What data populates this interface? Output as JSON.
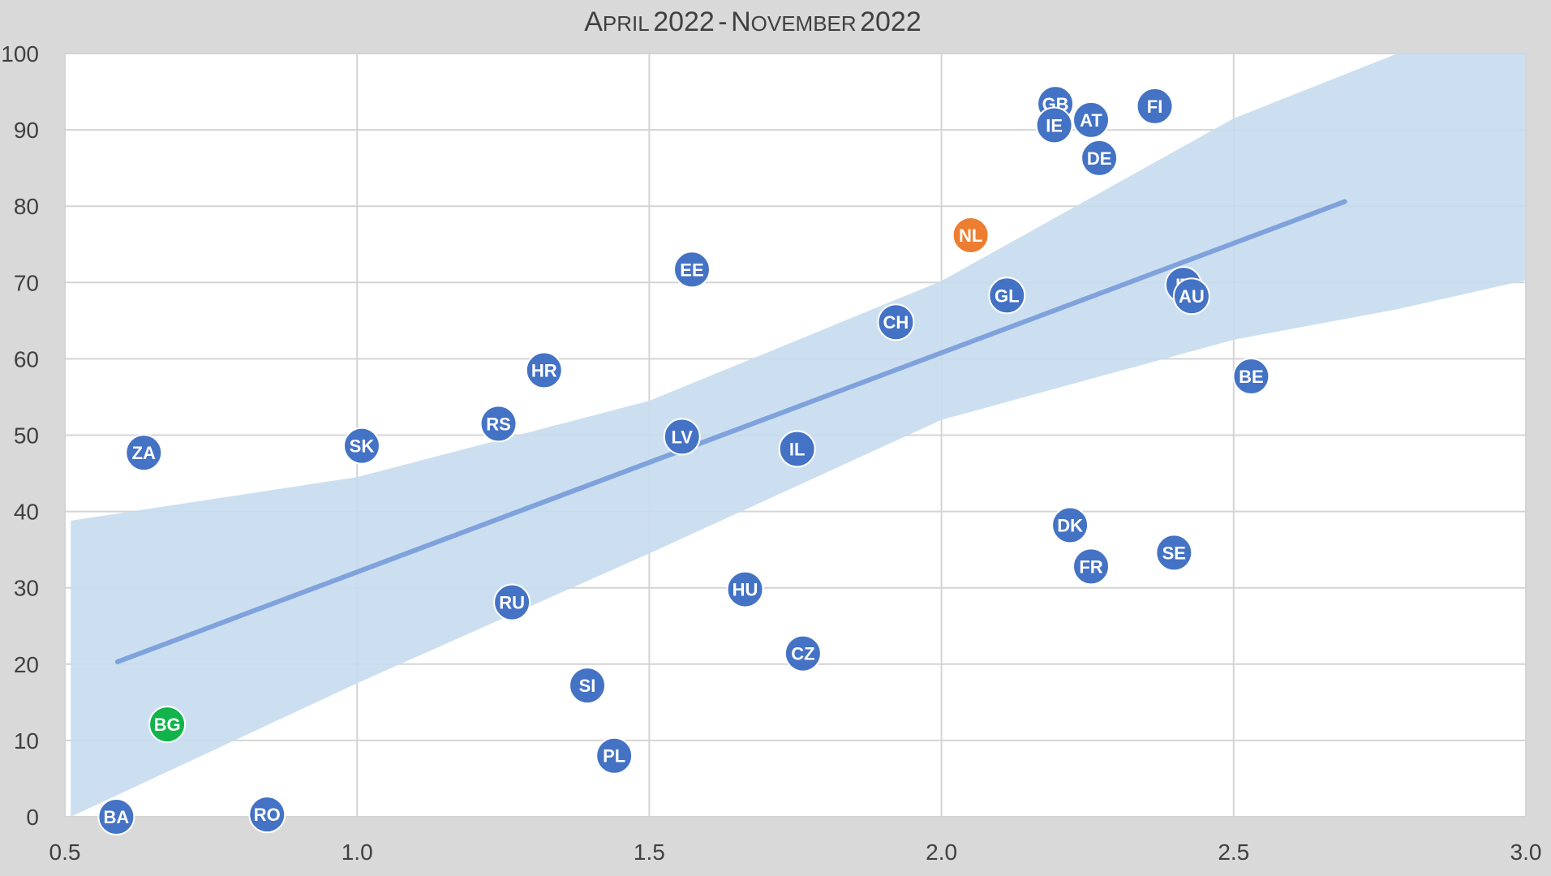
{
  "chart_data": {
    "type": "scatter",
    "title": "April 2022 - November 2022",
    "xlabel": "",
    "ylabel": "",
    "xlim": [
      0.5,
      3.0
    ],
    "ylim": [
      0,
      100
    ],
    "x_ticks": [
      "0.5",
      "1.0",
      "1.5",
      "2.0",
      "2.5",
      "3.0"
    ],
    "y_ticks": [
      "0",
      "10",
      "20",
      "30",
      "40",
      "50",
      "60",
      "70",
      "80",
      "90",
      "100"
    ],
    "grid": true,
    "legend": "none",
    "trendline": {
      "x": [
        0.59,
        2.69
      ],
      "y": [
        20.3,
        80.6
      ],
      "color": "#7fa2dc"
    },
    "confidence_band": {
      "color": "#c6dbf0",
      "x": [
        0.51,
        1.0,
        1.5,
        2.0,
        2.5,
        2.78,
        3.0
      ],
      "upper": [
        38.8,
        44.5,
        54.5,
        70.2,
        91.5,
        100,
        100
      ],
      "lower": [
        0,
        17.5,
        34.5,
        52.0,
        62.5,
        66.5,
        70.3
      ]
    },
    "colors": {
      "default": "#4472c4",
      "highlight_orange": "#ed7d31",
      "highlight_green": "#12b34b"
    },
    "points": [
      {
        "label": "GB",
        "x": 2.195,
        "y": 93.4,
        "color": "#4472c4"
      },
      {
        "label": "IE",
        "x": 2.193,
        "y": 90.6,
        "color": "#4472c4"
      },
      {
        "label": "AT",
        "x": 2.256,
        "y": 91.3,
        "color": "#4472c4"
      },
      {
        "label": "FI",
        "x": 2.365,
        "y": 93.1,
        "color": "#4472c4"
      },
      {
        "label": "DE",
        "x": 2.27,
        "y": 86.3,
        "color": "#4472c4"
      },
      {
        "label": "NL",
        "x": 2.05,
        "y": 76.2,
        "color": "#ed7d31"
      },
      {
        "label": "EE",
        "x": 1.573,
        "y": 71.7,
        "color": "#4472c4"
      },
      {
        "label": "GL",
        "x": 2.112,
        "y": 68.3,
        "color": "#4472c4"
      },
      {
        "label": "IT",
        "x": 2.414,
        "y": 69.7,
        "color": "#4472c4"
      },
      {
        "label": "AU",
        "x": 2.428,
        "y": 68.2,
        "color": "#4472c4"
      },
      {
        "label": "CH",
        "x": 1.922,
        "y": 64.8,
        "color": "#4472c4"
      },
      {
        "label": "HR",
        "x": 1.32,
        "y": 58.5,
        "color": "#4472c4"
      },
      {
        "label": "BE",
        "x": 2.53,
        "y": 57.7,
        "color": "#4472c4"
      },
      {
        "label": "RS",
        "x": 1.242,
        "y": 51.5,
        "color": "#4472c4"
      },
      {
        "label": "LV",
        "x": 1.556,
        "y": 49.8,
        "color": "#4472c4"
      },
      {
        "label": "SK",
        "x": 1.008,
        "y": 48.6,
        "color": "#4472c4"
      },
      {
        "label": "IL",
        "x": 1.753,
        "y": 48.2,
        "color": "#4472c4"
      },
      {
        "label": "ZA",
        "x": 0.635,
        "y": 47.7,
        "color": "#4472c4"
      },
      {
        "label": "DK",
        "x": 2.22,
        "y": 38.2,
        "color": "#4472c4"
      },
      {
        "label": "SE",
        "x": 2.398,
        "y": 34.6,
        "color": "#4472c4"
      },
      {
        "label": "FR",
        "x": 2.256,
        "y": 32.8,
        "color": "#4472c4"
      },
      {
        "label": "HU",
        "x": 1.664,
        "y": 29.8,
        "color": "#4472c4"
      },
      {
        "label": "RU",
        "x": 1.265,
        "y": 28.1,
        "color": "#4472c4"
      },
      {
        "label": "CZ",
        "x": 1.763,
        "y": 21.4,
        "color": "#4472c4"
      },
      {
        "label": "SI",
        "x": 1.394,
        "y": 17.2,
        "color": "#4472c4"
      },
      {
        "label": "BG",
        "x": 0.675,
        "y": 12.1,
        "color": "#12b34b"
      },
      {
        "label": "PL",
        "x": 1.44,
        "y": 8.0,
        "color": "#4472c4"
      },
      {
        "label": "BA",
        "x": 0.588,
        "y": 0.0,
        "color": "#4472c4"
      },
      {
        "label": "RO",
        "x": 0.846,
        "y": 0.3,
        "color": "#4472c4"
      }
    ]
  }
}
